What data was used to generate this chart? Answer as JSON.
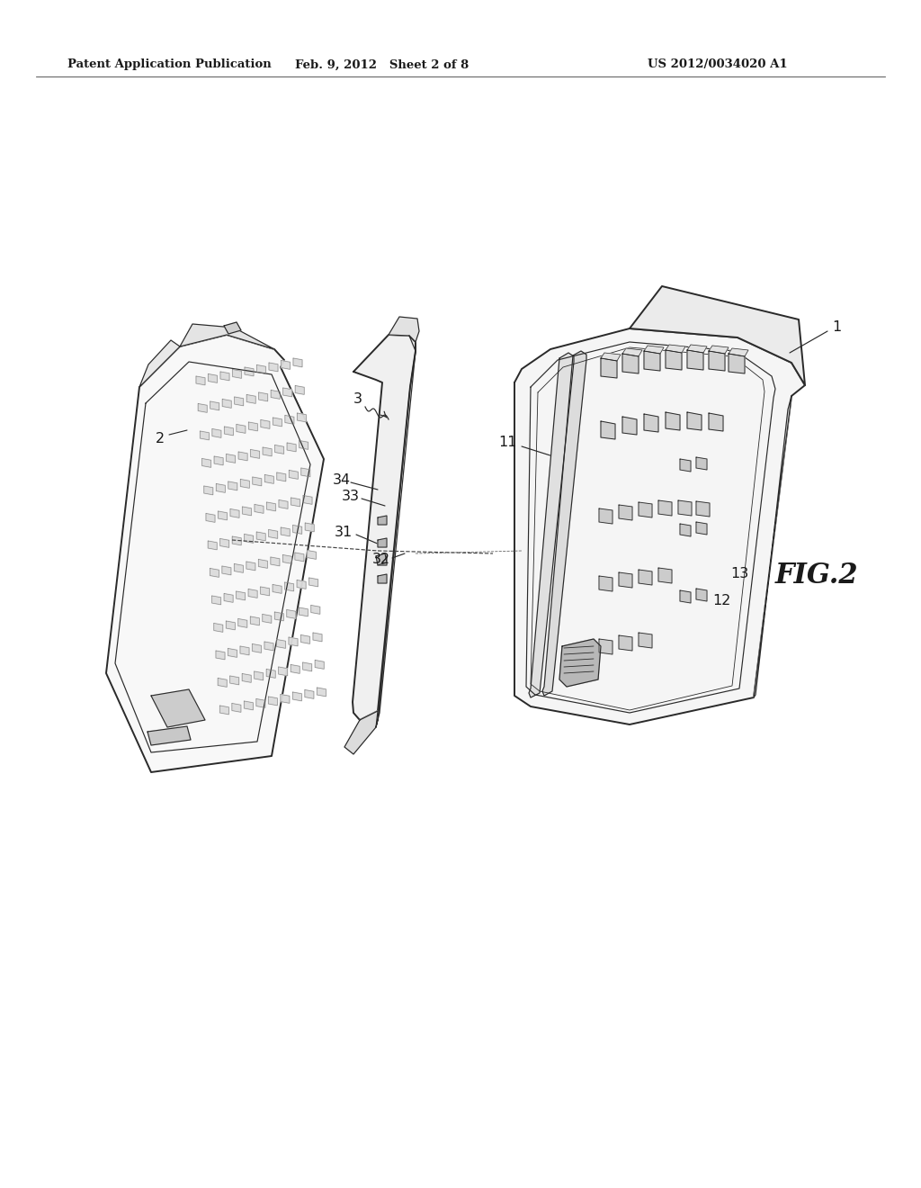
{
  "bg_color": "#ffffff",
  "header_left": "Patent Application Publication",
  "header_center": "Feb. 9, 2012   Sheet 2 of 8",
  "header_right": "US 2012/0034020 A1",
  "fig_label": "FIG.2",
  "text_color": "#1a1a1a",
  "line_color": "#2a2a2a",
  "lw_main": 1.4,
  "lw_thin": 0.85,
  "lw_vt": 0.6,
  "fig_w": 1024,
  "fig_h": 1320
}
